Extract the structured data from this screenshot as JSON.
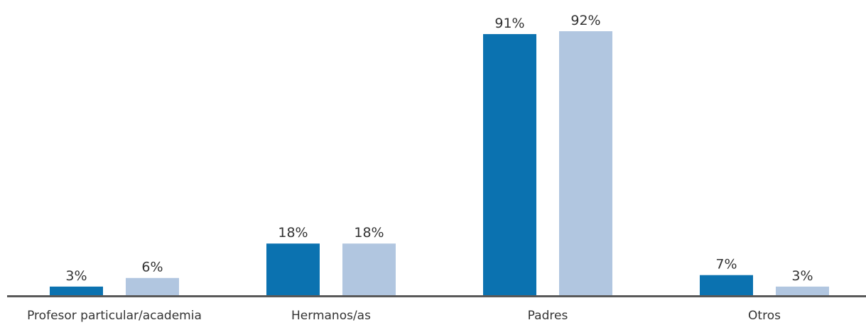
{
  "chart_data": {
    "type": "bar",
    "categories": [
      "Profesor particular/academia",
      "Hermanos/as",
      "Padres",
      "Otros"
    ],
    "series": [
      {
        "values": [
          3,
          18,
          91,
          7
        ],
        "labels": [
          "3%",
          "18%",
          "91%",
          "7%"
        ],
        "color": "#0b72b0"
      },
      {
        "values": [
          6,
          18,
          92,
          3
        ],
        "labels": [
          "6%",
          "18%",
          "92%",
          "3%"
        ],
        "color": "#b1c6e0"
      }
    ],
    "ylim": [
      0,
      92
    ],
    "grid": false,
    "legend": "none",
    "axis_color": "#595959"
  }
}
